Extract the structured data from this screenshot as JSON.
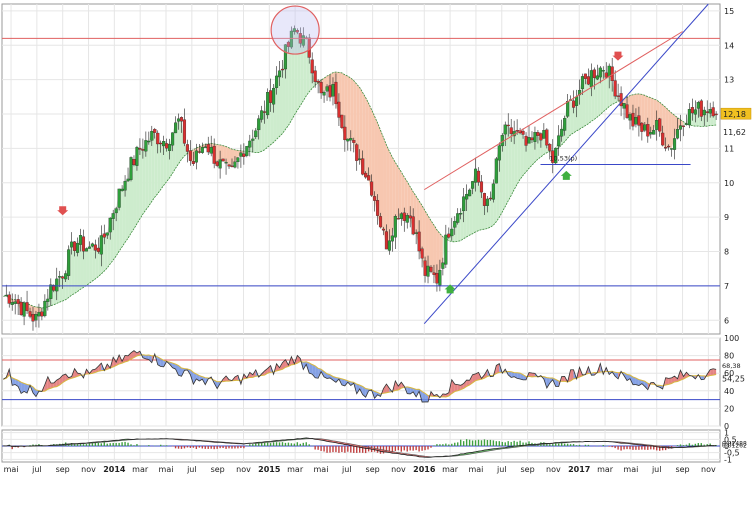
{
  "chart_data": [
    {
      "type": "candlestick",
      "y_ticks": [
        "6",
        "7",
        "8",
        "9",
        "10",
        "11",
        "12",
        "13",
        "14",
        "15"
      ],
      "ylim": [
        5.6,
        15.2
      ],
      "price_labels": {
        "last": "12,18",
        "trend": "11,62",
        "support": "10,53(p)"
      },
      "horizontal_lines": [
        {
          "value": 14.2,
          "color": "#e06060"
        },
        {
          "value": 7.0,
          "color": "#3a48c8"
        },
        {
          "value": 10.53,
          "color": "#3a48c8"
        }
      ],
      "trend_lines": [
        {
          "from": [
            "2016-01",
            5.9
          ],
          "to": [
            "2017-11",
            15.2
          ],
          "color": "#3a48c8"
        },
        {
          "from": [
            "2016-01",
            9.8
          ],
          "to": [
            "2017-09",
            14.4
          ],
          "color": "#e06060"
        }
      ],
      "price_path": [
        [
          "2013-05",
          6.7
        ],
        [
          "2013-06",
          6.3
        ],
        [
          "2013-07",
          6.0
        ],
        [
          "2013-08",
          6.9
        ],
        [
          "2013-09",
          7.4
        ],
        [
          "2013-10",
          8.3
        ],
        [
          "2013-11",
          8.1
        ],
        [
          "2013-12",
          8.2
        ],
        [
          "2014-01",
          9.3
        ],
        [
          "2014-02",
          10.3
        ],
        [
          "2014-03",
          11.0
        ],
        [
          "2014-04",
          11.4
        ],
        [
          "2014-05",
          11.2
        ],
        [
          "2014-06",
          11.8
        ],
        [
          "2014-07",
          10.5
        ],
        [
          "2014-08",
          11.2
        ],
        [
          "2014-09",
          10.6
        ],
        [
          "2014-10",
          10.2
        ],
        [
          "2014-11",
          11.0
        ],
        [
          "2014-12",
          11.6
        ],
        [
          "2015-01",
          12.5
        ],
        [
          "2015-02",
          13.5
        ],
        [
          "2015-03",
          14.5
        ],
        [
          "2015-04",
          13.9
        ],
        [
          "2015-05",
          12.5
        ],
        [
          "2015-06",
          12.7
        ],
        [
          "2015-07",
          11.3
        ],
        [
          "2015-08",
          10.7
        ],
        [
          "2015-09",
          9.8
        ],
        [
          "2015-10",
          8.2
        ],
        [
          "2015-11",
          9.2
        ],
        [
          "2015-12",
          9.0
        ],
        [
          "2016-01",
          7.4
        ],
        [
          "2016-02",
          7.2
        ],
        [
          "2016-03",
          8.8
        ],
        [
          "2016-04",
          9.5
        ],
        [
          "2016-05",
          10.2
        ],
        [
          "2016-06",
          9.2
        ],
        [
          "2016-07",
          11.4
        ],
        [
          "2016-08",
          11.5
        ],
        [
          "2016-09",
          11.0
        ],
        [
          "2016-10",
          11.5
        ],
        [
          "2016-11",
          10.6
        ],
        [
          "2016-12",
          12.1
        ],
        [
          "2017-01",
          12.7
        ],
        [
          "2017-02",
          13.2
        ],
        [
          "2017-03",
          13.4
        ],
        [
          "2017-04",
          12.6
        ],
        [
          "2017-05",
          11.8
        ],
        [
          "2017-06",
          11.5
        ],
        [
          "2017-07",
          11.6
        ],
        [
          "2017-08",
          11.0
        ],
        [
          "2017-09",
          11.9
        ],
        [
          "2017-10",
          12.1
        ],
        [
          "2017-11",
          12.2
        ]
      ],
      "signals": [
        {
          "type": "sell",
          "at": [
            "2013-09",
            9.2
          ]
        },
        {
          "type": "buy",
          "at": [
            "2016-03",
            6.9
          ]
        },
        {
          "type": "buy",
          "at": [
            "2016-12",
            10.2
          ]
        },
        {
          "type": "sell",
          "at": [
            "2017-04",
            13.7
          ]
        }
      ],
      "highlight": {
        "type": "circle",
        "at": [
          "2015-03",
          14.5
        ]
      }
    },
    {
      "type": "line",
      "y_ticks": [
        "100",
        "80",
        "60",
        "40",
        "20",
        "0"
      ],
      "ylim": [
        0,
        100
      ],
      "price_labels": {
        "a": "68,38",
        "b": "54,25"
      },
      "horizontal_lines": [
        {
          "value": 75,
          "color": "#e06060"
        },
        {
          "value": 30,
          "color": "#3a48c8"
        }
      ],
      "series": [
        {
          "points": [
            [
              "2013-05",
              45
            ],
            [
              "2013-07",
              40
            ],
            [
              "2013-09",
              62
            ],
            [
              "2013-11",
              58
            ],
            [
              "2014-01",
              72
            ],
            [
              "2014-03",
              85
            ],
            [
              "2014-05",
              70
            ],
            [
              "2014-07",
              55
            ],
            [
              "2014-09",
              48
            ],
            [
              "2014-11",
              55
            ],
            [
              "2015-01",
              62
            ],
            [
              "2015-03",
              78
            ],
            [
              "2015-05",
              55
            ],
            [
              "2015-07",
              44
            ],
            [
              "2015-09",
              36
            ],
            [
              "2015-11",
              48
            ],
            [
              "2016-01",
              30
            ],
            [
              "2016-03",
              45
            ],
            [
              "2016-05",
              58
            ],
            [
              "2016-07",
              65
            ],
            [
              "2016-09",
              55
            ],
            [
              "2016-11",
              48
            ],
            [
              "2017-01",
              62
            ],
            [
              "2017-03",
              66
            ],
            [
              "2017-05",
              50
            ],
            [
              "2017-07",
              46
            ],
            [
              "2017-09",
              58
            ],
            [
              "2017-11",
              60
            ]
          ]
        }
      ]
    },
    {
      "type": "histogram",
      "y_ticks": [
        "1",
        "0,5",
        "0",
        "-0,5",
        "-1"
      ],
      "ylim": [
        -1.2,
        1.2
      ],
      "price_labels": {
        "a": "0,02488",
        "b": "0,01262"
      },
      "series": [
        {
          "points": [
            [
              "2013-05",
              -0.05
            ],
            [
              "2013-08",
              0.05
            ],
            [
              "2013-11",
              0.25
            ],
            [
              "2014-02",
              0.5
            ],
            [
              "2014-05",
              0.55
            ],
            [
              "2014-08",
              0.35
            ],
            [
              "2014-11",
              0.15
            ],
            [
              "2015-02",
              0.45
            ],
            [
              "2015-04",
              0.6
            ],
            [
              "2015-07",
              0.1
            ],
            [
              "2015-10",
              -0.45
            ],
            [
              "2016-01",
              -0.85
            ],
            [
              "2016-03",
              -0.75
            ],
            [
              "2016-06",
              -0.25
            ],
            [
              "2016-09",
              0.1
            ],
            [
              "2016-12",
              0.3
            ],
            [
              "2017-03",
              0.35
            ],
            [
              "2017-06",
              0.05
            ],
            [
              "2017-08",
              -0.15
            ],
            [
              "2017-11",
              0.03
            ]
          ]
        }
      ]
    }
  ],
  "x_axis": {
    "ticks": [
      {
        "label": "mai",
        "date": "2013-05"
      },
      {
        "label": "jul",
        "date": "2013-07"
      },
      {
        "label": "sep",
        "date": "2013-09"
      },
      {
        "label": "nov",
        "date": "2013-11"
      },
      {
        "label": "2014",
        "date": "2014-01"
      },
      {
        "label": "mar",
        "date": "2014-03"
      },
      {
        "label": "mai",
        "date": "2014-05"
      },
      {
        "label": "jul",
        "date": "2014-07"
      },
      {
        "label": "sep",
        "date": "2014-09"
      },
      {
        "label": "nov",
        "date": "2014-11"
      },
      {
        "label": "2015",
        "date": "2015-01"
      },
      {
        "label": "mar",
        "date": "2015-03"
      },
      {
        "label": "mai",
        "date": "2015-05"
      },
      {
        "label": "jul",
        "date": "2015-07"
      },
      {
        "label": "sep",
        "date": "2015-09"
      },
      {
        "label": "nov",
        "date": "2015-11"
      },
      {
        "label": "2016",
        "date": "2016-01"
      },
      {
        "label": "mar",
        "date": "2016-03"
      },
      {
        "label": "mai",
        "date": "2016-05"
      },
      {
        "label": "jul",
        "date": "2016-07"
      },
      {
        "label": "sep",
        "date": "2016-09"
      },
      {
        "label": "nov",
        "date": "2016-11"
      },
      {
        "label": "2017",
        "date": "2017-01"
      },
      {
        "label": "mar",
        "date": "2017-03"
      },
      {
        "label": "mai",
        "date": "2017-05"
      },
      {
        "label": "jul",
        "date": "2017-07"
      },
      {
        "label": "sep",
        "date": "2017-09"
      },
      {
        "label": "nov",
        "date": "2017-11"
      }
    ]
  },
  "colors": {
    "bull": "#2e9e3a",
    "bear": "#d83030",
    "grid": "#e6e6e6",
    "support": "#3a48c8",
    "resistance": "#e06060",
    "above_fill": "#cdeccd",
    "below_fill": "#f7c7b0",
    "osc_line": "#333333",
    "osc_signal": "#d8b840",
    "osc_high_fill": "#e07070",
    "osc_low_fill": "#7090e0",
    "last_label_bg": "#f0c020"
  }
}
